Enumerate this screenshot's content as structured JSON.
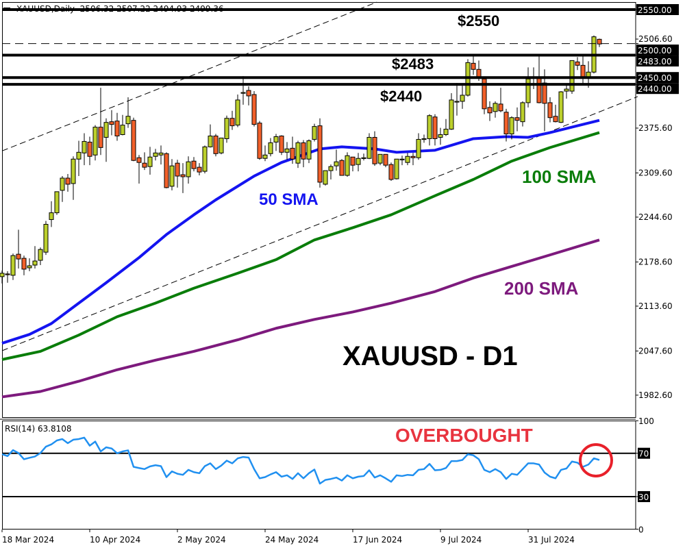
{
  "header": {
    "symbol_timeframe": "XAUUSD,Daily",
    "ohlc_text": "2506.32 2507.22 2494.93 2499.36"
  },
  "annotations": {
    "level_2550": "$2550",
    "level_2483": "$2483",
    "level_2440": "$2440",
    "sma50": "50 SMA",
    "sma100": "100 SMA",
    "sma200": "200 SMA",
    "title": "XAUUSD - D1",
    "overbought": "OVERBOUGHT"
  },
  "colors": {
    "bull_candle": "#bcd02c",
    "bear_candle": "#f2602a",
    "sma50": "#1414f0",
    "sma100": "#0a7d0a",
    "sma200": "#7d1a7d",
    "rsi_line": "#2090f0",
    "overbought_text": "#e8343f",
    "circle": "#e8202a"
  },
  "chart_data": [
    {
      "type": "candlestick",
      "title": "XAUUSD,Daily",
      "ylim": [
        1965,
        2560
      ],
      "y_ticks": [
        "2506.60",
        "2375.60",
        "2309.60",
        "2244.60",
        "2178.60",
        "2113.60",
        "2047.60",
        "1982.60"
      ],
      "x_tick_labels": [
        {
          "bar": 0,
          "label": "18 Mar 2024"
        },
        {
          "bar": 16,
          "label": "10 Apr 2024"
        },
        {
          "bar": 32,
          "label": "2 May 2024"
        },
        {
          "bar": 48,
          "label": "24 May 2024"
        },
        {
          "bar": 64,
          "label": "17 Jun 2024"
        },
        {
          "bar": 80,
          "label": "9 Jul 2024"
        },
        {
          "bar": 96,
          "label": "31 Jul 2024"
        }
      ],
      "ohlc": [
        [
          2157,
          2166,
          2147,
          2162
        ],
        [
          2161,
          2165,
          2148,
          2160
        ],
        [
          2159,
          2191,
          2152,
          2188
        ],
        [
          2190,
          2226,
          2169,
          2183
        ],
        [
          2184,
          2188,
          2159,
          2168
        ],
        [
          2170,
          2184,
          2165,
          2173
        ],
        [
          2174,
          2202,
          2169,
          2180
        ],
        [
          2181,
          2200,
          2174,
          2197
        ],
        [
          2193,
          2239,
          2189,
          2234
        ],
        [
          2241,
          2268,
          2230,
          2251
        ],
        [
          2251,
          2282,
          2248,
          2282
        ],
        [
          2284,
          2305,
          2267,
          2302
        ],
        [
          2302,
          2308,
          2282,
          2293
        ],
        [
          2294,
          2334,
          2270,
          2330
        ],
        [
          2330,
          2357,
          2305,
          2340
        ],
        [
          2339,
          2368,
          2321,
          2356
        ],
        [
          2355,
          2363,
          2321,
          2334
        ],
        [
          2336,
          2380,
          2328,
          2377
        ],
        [
          2377,
          2435,
          2336,
          2347
        ],
        [
          2362,
          2390,
          2326,
          2384
        ],
        [
          2385,
          2402,
          2365,
          2381
        ],
        [
          2386,
          2398,
          2357,
          2364
        ],
        [
          2366,
          2395,
          2365,
          2380
        ],
        [
          2382,
          2421,
          2376,
          2393
        ],
        [
          2387,
          2391,
          2327,
          2328
        ],
        [
          2332,
          2336,
          2294,
          2325
        ],
        [
          2324,
          2340,
          2314,
          2318
        ],
        [
          2319,
          2348,
          2307,
          2333
        ],
        [
          2334,
          2345,
          2328,
          2339
        ],
        [
          2336,
          2350,
          2322,
          2339
        ],
        [
          2338,
          2340,
          2287,
          2288
        ],
        [
          2290,
          2330,
          2284,
          2320
        ],
        [
          2324,
          2329,
          2288,
          2305
        ],
        [
          2307,
          2324,
          2280,
          2304
        ],
        [
          2304,
          2334,
          2294,
          2326
        ],
        [
          2327,
          2333,
          2312,
          2316
        ],
        [
          2318,
          2324,
          2306,
          2311
        ],
        [
          2312,
          2350,
          2309,
          2348
        ],
        [
          2348,
          2381,
          2347,
          2364
        ],
        [
          2364,
          2367,
          2334,
          2338
        ],
        [
          2339,
          2361,
          2337,
          2361
        ],
        [
          2360,
          2394,
          2354,
          2390
        ],
        [
          2390,
          2401,
          2373,
          2379
        ],
        [
          2380,
          2425,
          2377,
          2417
        ],
        [
          2427,
          2452,
          2410,
          2428
        ],
        [
          2431,
          2437,
          2409,
          2423
        ],
        [
          2425,
          2430,
          2378,
          2381
        ],
        [
          2383,
          2386,
          2329,
          2331
        ],
        [
          2331,
          2350,
          2327,
          2336
        ],
        [
          2338,
          2361,
          2334,
          2354
        ],
        [
          2355,
          2367,
          2342,
          2363
        ],
        [
          2364,
          2365,
          2336,
          2340
        ],
        [
          2340,
          2355,
          2329,
          2345
        ],
        [
          2346,
          2363,
          2323,
          2330
        ],
        [
          2324,
          2357,
          2317,
          2354
        ],
        [
          2354,
          2358,
          2318,
          2330
        ],
        [
          2330,
          2359,
          2324,
          2357
        ],
        [
          2359,
          2382,
          2356,
          2378
        ],
        [
          2379,
          2390,
          2288,
          2296
        ],
        [
          2293,
          2313,
          2291,
          2313
        ],
        [
          2313,
          2322,
          2300,
          2319
        ],
        [
          2320,
          2344,
          2313,
          2326
        ],
        [
          2328,
          2330,
          2306,
          2306
        ],
        [
          2306,
          2340,
          2304,
          2335
        ],
        [
          2333,
          2333,
          2312,
          2321
        ],
        [
          2322,
          2339,
          2312,
          2331
        ],
        [
          2331,
          2338,
          2328,
          2332
        ],
        [
          2331,
          2368,
          2330,
          2362
        ],
        [
          2362,
          2371,
          2320,
          2323
        ],
        [
          2324,
          2337,
          2321,
          2337
        ],
        [
          2337,
          2337,
          2318,
          2321
        ],
        [
          2322,
          2325,
          2298,
          2300
        ],
        [
          2301,
          2330,
          2300,
          2330
        ],
        [
          2329,
          2335,
          2321,
          2330
        ],
        [
          2325,
          2339,
          2321,
          2334
        ],
        [
          2334,
          2339,
          2321,
          2332
        ],
        [
          2332,
          2368,
          2329,
          2359
        ],
        [
          2360,
          2366,
          2354,
          2360
        ],
        [
          2360,
          2396,
          2350,
          2394
        ],
        [
          2392,
          2396,
          2350,
          2360
        ],
        [
          2362,
          2376,
          2351,
          2366
        ],
        [
          2366,
          2389,
          2364,
          2374
        ],
        [
          2374,
          2427,
          2373,
          2417
        ],
        [
          2414,
          2442,
          2394,
          2415
        ],
        [
          2415,
          2438,
          2404,
          2424
        ],
        [
          2424,
          2477,
          2422,
          2472
        ],
        [
          2471,
          2485,
          2454,
          2462
        ],
        [
          2462,
          2475,
          2445,
          2449
        ],
        [
          2448,
          2448,
          2396,
          2404
        ],
        [
          2406,
          2415,
          2386,
          2398
        ],
        [
          2400,
          2415,
          2391,
          2412
        ],
        [
          2411,
          2435,
          2399,
          2401
        ],
        [
          2399,
          2404,
          2356,
          2367
        ],
        [
          2367,
          2393,
          2359,
          2391
        ],
        [
          2391,
          2406,
          2371,
          2387
        ],
        [
          2385,
          2415,
          2378,
          2413
        ],
        [
          2413,
          2465,
          2406,
          2448
        ],
        [
          2451,
          2465,
          2433,
          2449
        ],
        [
          2449,
          2481,
          2412,
          2413
        ],
        [
          2442,
          2462,
          2371,
          2412
        ],
        [
          2413,
          2421,
          2384,
          2391
        ],
        [
          2393,
          2410,
          2384,
          2385
        ],
        [
          2384,
          2430,
          2383,
          2429
        ],
        [
          2430,
          2440,
          2419,
          2433
        ],
        [
          2430,
          2475,
          2426,
          2475
        ],
        [
          2473,
          2480,
          2461,
          2468
        ],
        [
          2468,
          2484,
          2441,
          2451
        ],
        [
          2451,
          2474,
          2435,
          2458
        ],
        [
          2458,
          2512,
          2456,
          2510
        ],
        [
          2506.32,
          2507.22,
          2494.93,
          2499.36
        ]
      ],
      "moving_averages": [
        {
          "name": "50 SMA",
          "color": "#1414f0",
          "points": [
            [
              0,
              2059
            ],
            [
              5,
              2072
            ],
            [
              9,
              2088
            ],
            [
              14,
              2118
            ],
            [
              19,
              2148
            ],
            [
              25,
              2185
            ],
            [
              30,
              2219
            ],
            [
              35,
              2248
            ],
            [
              39,
              2270
            ],
            [
              46,
              2305
            ],
            [
              51,
              2325
            ],
            [
              58,
              2345
            ],
            [
              62,
              2348
            ],
            [
              68,
              2345
            ],
            [
              72,
              2340
            ],
            [
              79,
              2343
            ],
            [
              86,
              2360
            ],
            [
              92,
              2363
            ],
            [
              96,
              2362
            ],
            [
              100,
              2369
            ],
            [
              104,
              2377
            ],
            [
              109,
              2387
            ]
          ]
        },
        {
          "name": "100 SMA",
          "color": "#0a7d0a",
          "points": [
            [
              0,
              2035
            ],
            [
              7,
              2047
            ],
            [
              14,
              2071
            ],
            [
              21,
              2098
            ],
            [
              28,
              2118
            ],
            [
              35,
              2140
            ],
            [
              43,
              2162
            ],
            [
              50,
              2182
            ],
            [
              57,
              2211
            ],
            [
              64,
              2229
            ],
            [
              71,
              2248
            ],
            [
              79,
              2276
            ],
            [
              86,
              2300
            ],
            [
              93,
              2327
            ],
            [
              100,
              2347
            ],
            [
              109,
              2369
            ]
          ]
        },
        {
          "name": "200 SMA",
          "color": "#7d1a7d",
          "points": [
            [
              0,
              1980
            ],
            [
              7,
              1988
            ],
            [
              14,
              2003
            ],
            [
              21,
              2020
            ],
            [
              28,
              2034
            ],
            [
              35,
              2047
            ],
            [
              43,
              2064
            ],
            [
              50,
              2081
            ],
            [
              57,
              2094
            ],
            [
              64,
              2105
            ],
            [
              71,
              2118
            ],
            [
              79,
              2135
            ],
            [
              86,
              2155
            ],
            [
              93,
              2172
            ],
            [
              100,
              2189
            ],
            [
              109,
              2211
            ]
          ]
        }
      ],
      "horizontal_levels": [
        {
          "price": 2550,
          "label": "2550.00",
          "style": "solid"
        },
        {
          "price": 2500,
          "label": "2500.00",
          "style": "dashed"
        },
        {
          "price": 2483,
          "label": "2483.00",
          "style": "solid"
        },
        {
          "price": 2450,
          "label": "2450.00",
          "style": "solid"
        },
        {
          "price": 2440,
          "label": "2440.00",
          "style": "solid"
        }
      ],
      "trendlines": [
        {
          "style": "dashed",
          "from": [
            0,
            2342
          ],
          "to": [
            68.4,
            2561
          ]
        },
        {
          "style": "dashed",
          "from": [
            0,
            2048
          ],
          "to": [
            116,
            2422
          ]
        }
      ]
    },
    {
      "type": "line",
      "title": "RSI(14) 63.8108",
      "ylim": [
        0,
        100
      ],
      "y_ticks": [
        "100",
        "70",
        "30",
        "0"
      ],
      "levels": [
        70,
        30
      ],
      "values": [
        69.1,
        67.4,
        72.9,
        70.2,
        64.5,
        65.8,
        67.0,
        70.2,
        76.1,
        78.2,
        81.8,
        83.1,
        79.3,
        82.5,
        83.1,
        84.4,
        77.0,
        80.8,
        71.7,
        75.5,
        74.4,
        70.0,
        71.7,
        72.7,
        57.5,
        56.4,
        55.4,
        57.9,
        59.0,
        58.1,
        48.0,
        53.3,
        51.1,
        50.1,
        54.7,
        52.6,
        51.6,
        58.1,
        60.7,
        55.4,
        58.6,
        63.2,
        60.7,
        65.3,
        66.6,
        66.0,
        55.4,
        46.9,
        48.0,
        50.5,
        52.6,
        48.4,
        49.7,
        46.3,
        51.6,
        46.9,
        51.6,
        55.0,
        42.0,
        45.4,
        46.3,
        47.6,
        44.8,
        49.7,
        46.9,
        48.4,
        49.0,
        54.3,
        47.6,
        49.7,
        46.9,
        43.7,
        49.7,
        49.0,
        50.1,
        49.7,
        54.7,
        55.4,
        60.2,
        54.3,
        54.7,
        56.4,
        62.8,
        62.8,
        63.8,
        69.1,
        68.1,
        64.5,
        54.7,
        52.6,
        55.4,
        52.6,
        46.3,
        51.1,
        50.1,
        55.4,
        60.7,
        60.7,
        59.6,
        52.2,
        48.4,
        46.9,
        54.7,
        56.0,
        62.4,
        61.3,
        57.5,
        59.6,
        65.3,
        63.81
      ]
    }
  ]
}
